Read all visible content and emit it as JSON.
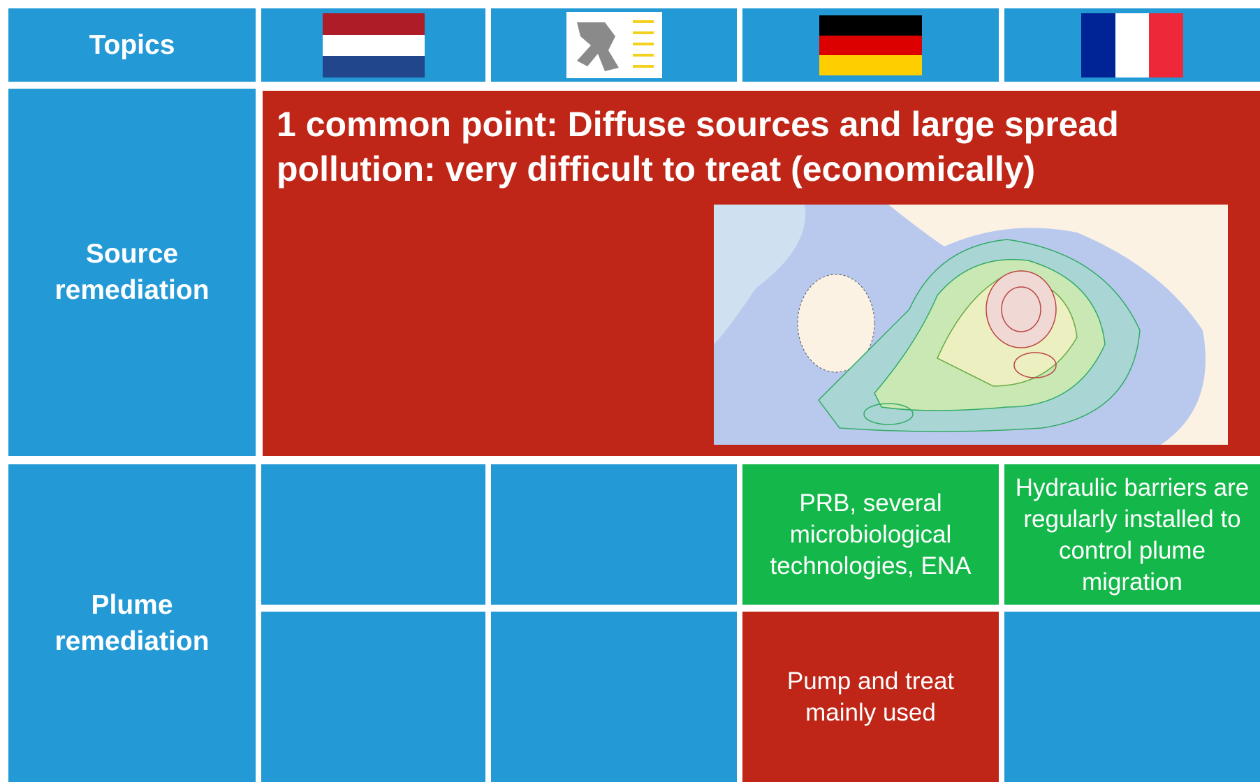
{
  "header": {
    "topics": "Topics"
  },
  "rows": [
    {
      "label": "Source remediation",
      "common": "1 common point: Diffuse sources and large spread pollution: very difficult to treat (economically)"
    },
    {
      "label": "Plume remediation",
      "germany_1": "PRB, several microbiological technologies, ENA",
      "france_1": "Hydraulic barriers are regularly installed to control plume migration",
      "germany_2": "Pump and treat mainly used"
    }
  ]
}
